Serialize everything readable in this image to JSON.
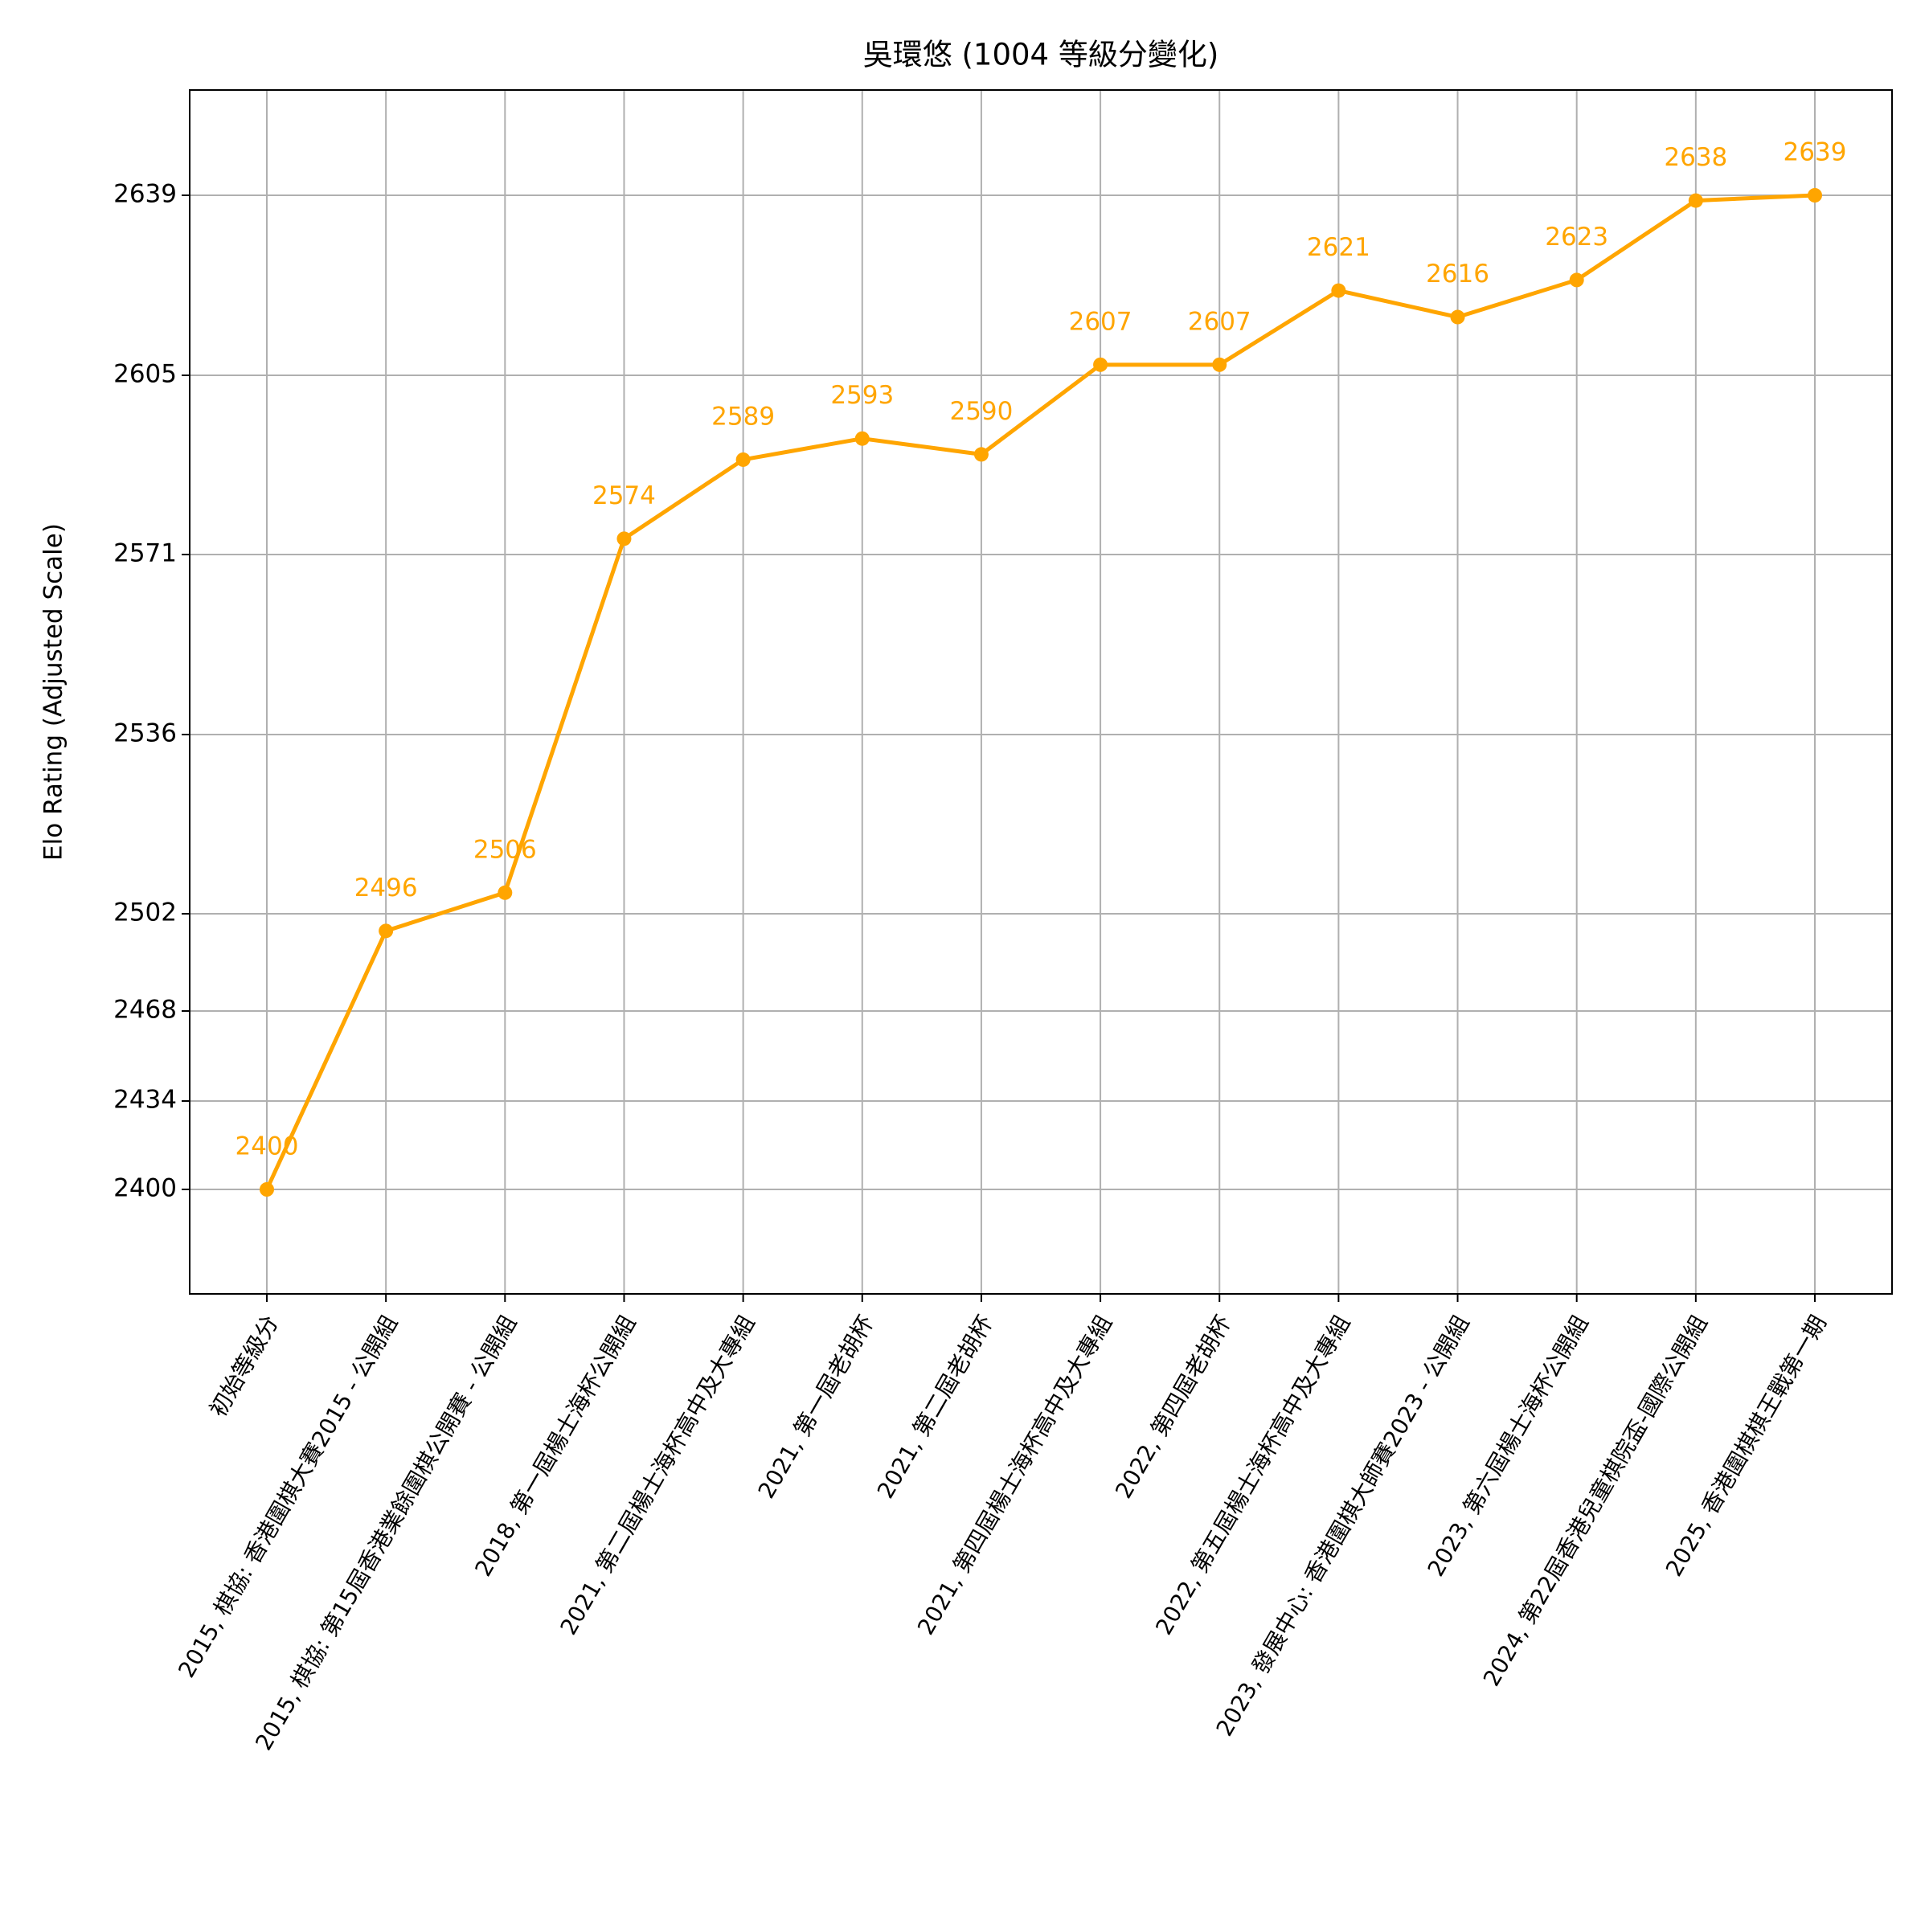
{
  "chart_data": {
    "type": "line",
    "title": "吳環悠 (1004 等級分變化)",
    "y_label": "Elo Rating (Adjusted Scale)",
    "categories": [
      "初始等級分",
      "2015, 棋協: 香港圍棋大賽2015 - 公開組",
      "2015, 棋協: 第15屆香港業餘圍棋公開賽 - 公開組",
      "2018, 第一屆楊士海杯公開組",
      "2021, 第二屆楊士海杯高中及大專組",
      "2021, 第一屆老胡杯",
      "2021, 第二屆老胡杯",
      "2021, 第四屆楊士海杯高中及大專組",
      "2022, 第四屆老胡杯",
      "2022, 第五屆楊士海杯高中及大專組",
      "2023, 發展中心: 香港圍棋大師賽2023 - 公開組",
      "2023, 第六屆楊士海杯公開組",
      "2024, 第22屆香港兒童棋院盃-國際公開組",
      "2025, 香港圍棋棋王戰第一期"
    ],
    "values": [
      2400,
      2496,
      2506,
      2574,
      2589,
      2593,
      2590,
      2607,
      2607,
      2621,
      2616,
      2623,
      2638,
      2639
    ],
    "color": "#ffa500",
    "ylim": [
      2360,
      2659
    ],
    "yticks": [
      2400,
      2434,
      2468,
      2502,
      2536,
      2571,
      2605,
      2639
    ],
    "grid": true
  }
}
